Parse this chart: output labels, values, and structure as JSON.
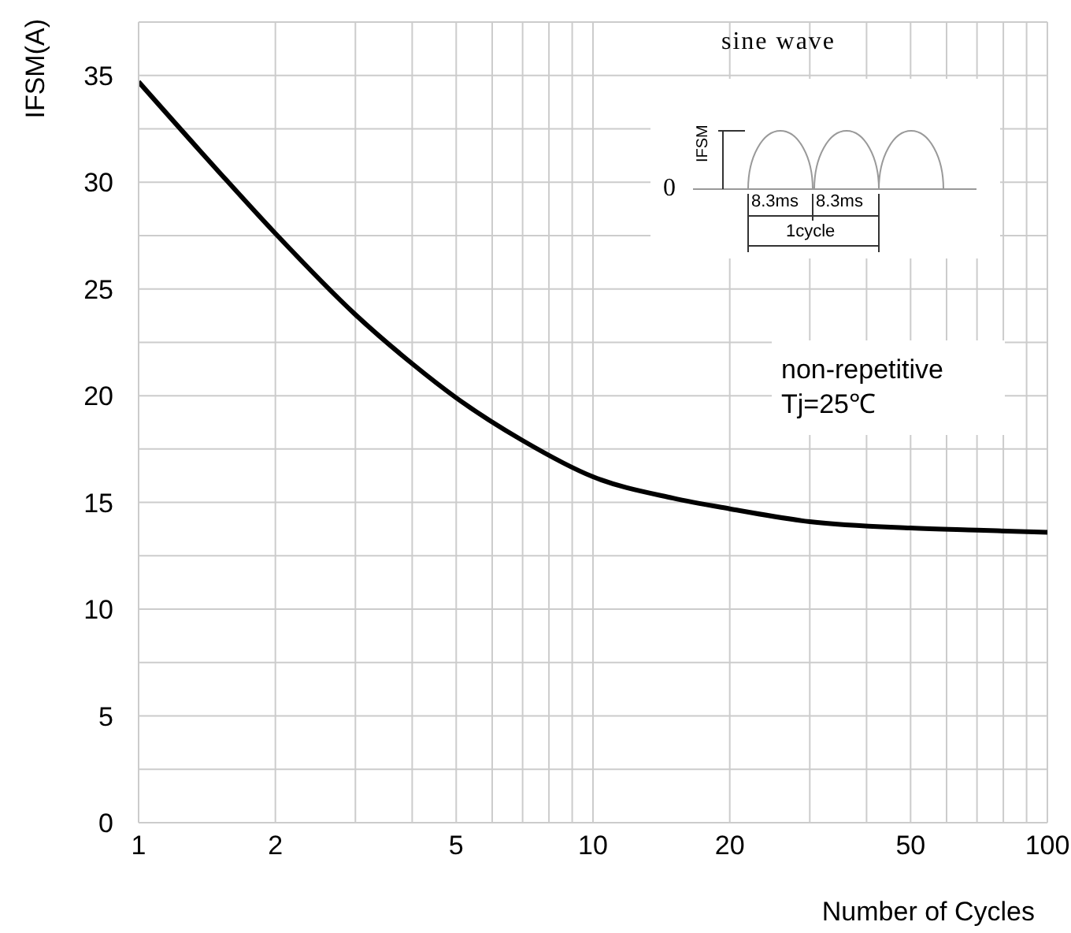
{
  "chart_data": {
    "type": "line",
    "xlabel": "Number of Cycles",
    "ylabel": "IFSM(A)",
    "log": "x",
    "x": [
      1,
      1.5,
      2,
      3,
      4,
      5,
      7,
      10,
      15,
      20,
      30,
      50,
      70,
      100
    ],
    "series": [
      {
        "color": "#000000",
        "values": [
          34.7,
          30.5,
          27.6,
          23.8,
          21.5,
          19.9,
          17.9,
          16.2,
          15.2,
          14.7,
          14.1,
          13.8,
          13.7,
          13.6
        ]
      }
    ],
    "xlim": [
      1,
      100
    ],
    "xticks": [
      1,
      2,
      {
        "value": 3,
        "label": null
      },
      {
        "value": 4,
        "label": null
      },
      5,
      {
        "value": 6,
        "label": null
      },
      {
        "value": 7,
        "label": null
      },
      {
        "value": 8,
        "label": null
      },
      {
        "value": 9,
        "label": null
      },
      10,
      20,
      {
        "value": 30,
        "label": null
      },
      {
        "value": 40,
        "label": null
      },
      50,
      {
        "value": 60,
        "label": null
      },
      {
        "value": 70,
        "label": null
      },
      {
        "value": 80,
        "label": null
      },
      {
        "value": 90,
        "label": null
      },
      100
    ],
    "ylim": [
      0,
      37.5
    ],
    "yticks": [
      0,
      {
        "value": 2.5,
        "label": null
      },
      5,
      {
        "value": 7.5,
        "label": null
      },
      10,
      {
        "value": 12.5,
        "label": null
      },
      15,
      {
        "value": 17.5,
        "label": null
      },
      20,
      {
        "value": 22.5,
        "label": null
      },
      25,
      {
        "value": 27.5,
        "label": null
      },
      30,
      {
        "value": 32.5,
        "label": null
      },
      35
    ],
    "grid": true,
    "marker": "none",
    "line_style": "solid",
    "annotations": [
      "sine wave",
      "IFSM",
      "0",
      "8.3ms",
      "8.3ms",
      "1cycle",
      "non-repetitive",
      "Tj=25℃"
    ]
  }
}
